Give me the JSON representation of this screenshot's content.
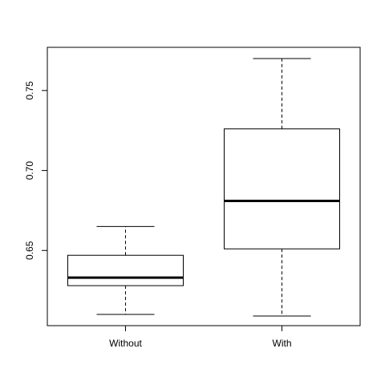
{
  "chart_data": {
    "type": "boxplot",
    "title": "",
    "xlabel": "",
    "ylabel": "",
    "categories": [
      "Without",
      "With"
    ],
    "boxes": [
      {
        "category": "Without",
        "whisker_low": 0.61,
        "q1": 0.628,
        "median": 0.633,
        "q3": 0.647,
        "whisker_high": 0.665
      },
      {
        "category": "With",
        "whisker_low": 0.609,
        "q1": 0.651,
        "median": 0.681,
        "q3": 0.726,
        "whisker_high": 0.77
      }
    ],
    "ylim": [
      0.603,
      0.777
    ],
    "yticks": [
      0.65,
      0.7,
      0.75
    ],
    "ytick_labels": [
      "0.65",
      "0.70",
      "0.75"
    ],
    "grid": false,
    "legend": "none",
    "colors": {
      "box_fill": "#ffffff",
      "stroke": "#000000"
    }
  }
}
